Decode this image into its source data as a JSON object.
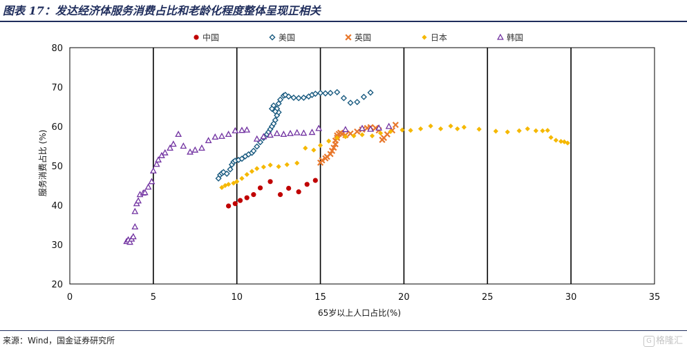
{
  "header": {
    "title": "图表 17：发达经济体服务消费占比和老龄化程度整体呈现正相关"
  },
  "footer": {
    "source": "来源：Wind，国金证券研究所",
    "watermark": "格隆汇",
    "watermark_badge": "G",
    "watermark_icon": "glh-logo-icon"
  },
  "chart_data": {
    "type": "scatter",
    "xlabel": "65岁以上人口占比(%)",
    "ylabel": "服务消费占比 (%)",
    "xlim": [
      0,
      35
    ],
    "ylim": [
      20,
      80
    ],
    "x_ticks": [
      0,
      5,
      10,
      15,
      20,
      25,
      30,
      35
    ],
    "y_ticks": [
      20,
      30,
      40,
      50,
      60,
      70,
      80
    ],
    "grid": "vertical lines at 5, 10, 15, 20, 25, 30",
    "legend_position": "top-center",
    "series": [
      {
        "name": "中国",
        "marker": "circle",
        "color": "#c00000",
        "points": [
          [
            9.5,
            39.8
          ],
          [
            9.9,
            40.4
          ],
          [
            10.2,
            41.2
          ],
          [
            10.6,
            41.9
          ],
          [
            11.0,
            42.7
          ],
          [
            11.4,
            44.4
          ],
          [
            12.0,
            46.0
          ],
          [
            12.6,
            42.7
          ],
          [
            13.1,
            44.3
          ],
          [
            13.7,
            43.4
          ],
          [
            14.2,
            45.3
          ],
          [
            14.7,
            46.3
          ]
        ]
      },
      {
        "name": "美国",
        "marker": "diamond-open",
        "color": "#1a5b80",
        "points": [
          [
            8.9,
            46.8
          ],
          [
            9.0,
            47.7
          ],
          [
            9.1,
            48.1
          ],
          [
            9.2,
            48.4
          ],
          [
            9.4,
            48.0
          ],
          [
            9.6,
            49.1
          ],
          [
            9.7,
            50.3
          ],
          [
            9.8,
            51.0
          ],
          [
            9.9,
            51.3
          ],
          [
            10.1,
            51.5
          ],
          [
            10.3,
            51.8
          ],
          [
            10.5,
            52.4
          ],
          [
            10.7,
            52.9
          ],
          [
            10.9,
            53.3
          ],
          [
            11.0,
            53.8
          ],
          [
            11.2,
            54.9
          ],
          [
            11.4,
            56.0
          ],
          [
            11.6,
            57.1
          ],
          [
            11.8,
            58.0
          ],
          [
            11.9,
            58.6
          ],
          [
            12.0,
            59.3
          ],
          [
            12.1,
            60.0
          ],
          [
            12.2,
            60.7
          ],
          [
            12.3,
            61.6
          ],
          [
            12.4,
            62.8
          ],
          [
            12.5,
            63.6
          ],
          [
            12.4,
            64.5
          ],
          [
            12.2,
            65.3
          ],
          [
            12.1,
            64.5
          ],
          [
            12.3,
            63.8
          ],
          [
            12.5,
            65.8
          ],
          [
            12.6,
            66.8
          ],
          [
            12.8,
            67.8
          ],
          [
            12.9,
            68.0
          ],
          [
            13.1,
            67.6
          ],
          [
            13.4,
            67.3
          ],
          [
            13.7,
            67.2
          ],
          [
            14.0,
            67.3
          ],
          [
            14.3,
            67.6
          ],
          [
            14.5,
            68.0
          ],
          [
            14.7,
            68.3
          ],
          [
            15.0,
            68.5
          ],
          [
            15.3,
            68.4
          ],
          [
            15.6,
            68.5
          ],
          [
            16.0,
            68.7
          ],
          [
            16.4,
            67.2
          ],
          [
            16.8,
            66.0
          ],
          [
            17.2,
            66.2
          ],
          [
            17.6,
            67.5
          ],
          [
            18.0,
            68.6
          ]
        ]
      },
      {
        "name": "英国",
        "marker": "x",
        "color": "#e8782d",
        "points": [
          [
            15.0,
            50.8
          ],
          [
            15.1,
            51.4
          ],
          [
            15.3,
            51.9
          ],
          [
            15.4,
            52.3
          ],
          [
            15.6,
            53.0
          ],
          [
            15.7,
            53.8
          ],
          [
            15.8,
            54.6
          ],
          [
            15.9,
            55.5
          ],
          [
            15.9,
            56.4
          ],
          [
            16.0,
            57.1
          ],
          [
            16.0,
            57.7
          ],
          [
            16.1,
            58.1
          ],
          [
            16.2,
            58.4
          ],
          [
            16.3,
            58.1
          ],
          [
            16.5,
            57.8
          ],
          [
            16.8,
            58.2
          ],
          [
            17.2,
            58.7
          ],
          [
            17.5,
            59.2
          ],
          [
            17.8,
            59.6
          ],
          [
            18.0,
            59.8
          ],
          [
            18.3,
            59.6
          ],
          [
            18.5,
            59.0
          ],
          [
            18.8,
            57.1
          ],
          [
            18.7,
            56.6
          ],
          [
            19.0,
            58.0
          ],
          [
            19.3,
            59.0
          ],
          [
            19.5,
            60.4
          ]
        ]
      },
      {
        "name": "日本",
        "marker": "diamond",
        "color": "#f5b800",
        "points": [
          [
            9.1,
            44.5
          ],
          [
            9.3,
            45.0
          ],
          [
            9.5,
            45.3
          ],
          [
            9.8,
            45.6
          ],
          [
            10.0,
            46.0
          ],
          [
            10.3,
            46.8
          ],
          [
            10.6,
            47.8
          ],
          [
            10.9,
            48.6
          ],
          [
            11.2,
            49.3
          ],
          [
            11.6,
            49.7
          ],
          [
            12.0,
            50.2
          ],
          [
            12.5,
            49.8
          ],
          [
            13.0,
            50.3
          ],
          [
            13.6,
            50.7
          ],
          [
            14.1,
            54.5
          ],
          [
            14.6,
            54.0
          ],
          [
            15.0,
            55.2
          ],
          [
            15.5,
            56.3
          ],
          [
            16.0,
            57.1
          ],
          [
            16.5,
            57.4
          ],
          [
            17.0,
            57.6
          ],
          [
            17.5,
            57.9
          ],
          [
            18.1,
            57.6
          ],
          [
            18.6,
            58.3
          ],
          [
            19.2,
            58.7
          ],
          [
            19.9,
            59.1
          ],
          [
            20.4,
            59.0
          ],
          [
            21.0,
            59.4
          ],
          [
            21.6,
            60.1
          ],
          [
            22.2,
            59.4
          ],
          [
            22.8,
            60.1
          ],
          [
            23.2,
            59.4
          ],
          [
            23.6,
            59.8
          ],
          [
            24.5,
            59.3
          ],
          [
            25.5,
            58.8
          ],
          [
            26.2,
            58.6
          ],
          [
            26.9,
            58.9
          ],
          [
            27.4,
            59.4
          ],
          [
            27.9,
            58.9
          ],
          [
            28.3,
            58.9
          ],
          [
            28.6,
            59.0
          ],
          [
            28.8,
            57.2
          ],
          [
            29.1,
            56.5
          ],
          [
            29.4,
            56.2
          ],
          [
            29.6,
            56.1
          ],
          [
            29.8,
            55.8
          ]
        ]
      },
      {
        "name": "韩国",
        "marker": "triangle-open",
        "color": "#7030a0",
        "points": [
          [
            3.4,
            30.8
          ],
          [
            3.5,
            31.2
          ],
          [
            3.6,
            30.6
          ],
          [
            3.7,
            31.4
          ],
          [
            3.8,
            32.0
          ],
          [
            3.9,
            34.5
          ],
          [
            3.9,
            38.4
          ],
          [
            4.0,
            40.4
          ],
          [
            4.1,
            41.1
          ],
          [
            4.2,
            42.7
          ],
          [
            4.4,
            43.1
          ],
          [
            4.5,
            43.2
          ],
          [
            4.7,
            44.6
          ],
          [
            4.9,
            46.0
          ],
          [
            5.0,
            48.7
          ],
          [
            5.2,
            50.4
          ],
          [
            5.3,
            51.5
          ],
          [
            5.5,
            52.6
          ],
          [
            5.7,
            53.3
          ],
          [
            6.0,
            54.5
          ],
          [
            6.2,
            55.5
          ],
          [
            6.5,
            58.0
          ],
          [
            6.8,
            55.0
          ],
          [
            7.2,
            53.5
          ],
          [
            7.5,
            54.0
          ],
          [
            7.9,
            54.5
          ],
          [
            8.3,
            56.4
          ],
          [
            8.7,
            57.3
          ],
          [
            9.1,
            57.5
          ],
          [
            9.5,
            58.0
          ],
          [
            9.9,
            58.9
          ],
          [
            10.3,
            59.0
          ],
          [
            10.6,
            59.1
          ],
          [
            11.2,
            56.8
          ],
          [
            11.6,
            57.4
          ],
          [
            12.0,
            57.8
          ],
          [
            12.4,
            58.2
          ],
          [
            12.8,
            58.0
          ],
          [
            13.2,
            58.2
          ],
          [
            13.6,
            58.4
          ],
          [
            14.0,
            58.3
          ],
          [
            14.5,
            58.5
          ],
          [
            14.9,
            59.5
          ],
          [
            16.5,
            59.2
          ],
          [
            17.5,
            59.5
          ],
          [
            18.0,
            59.3
          ],
          [
            18.5,
            59.6
          ],
          [
            19.1,
            60.0
          ]
        ]
      }
    ]
  }
}
